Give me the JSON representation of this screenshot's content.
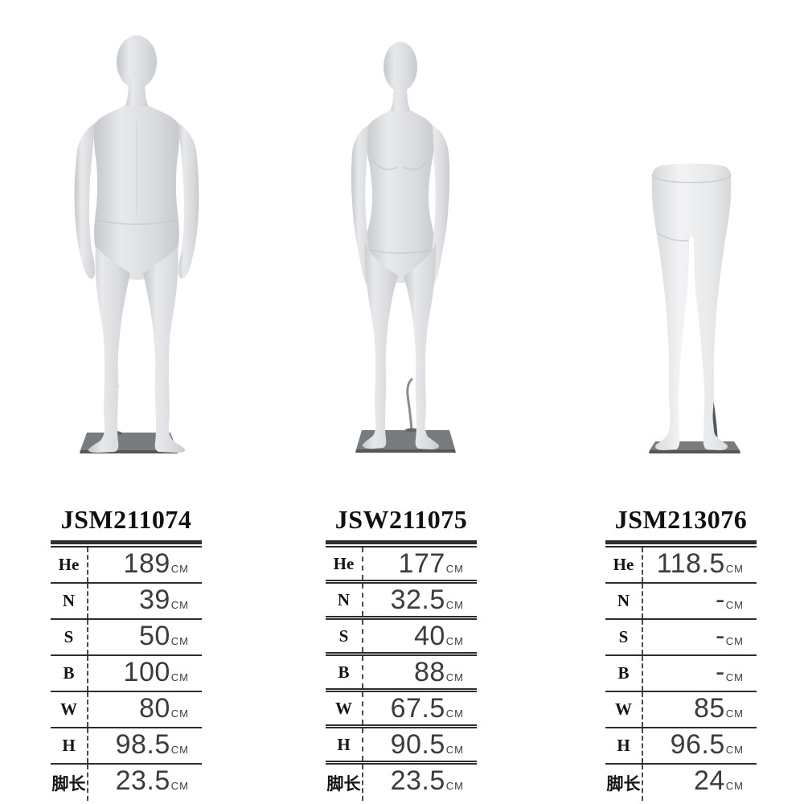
{
  "unit": "CM",
  "colors": {
    "body_mid": "#d8dadd",
    "body_light": "#ecedef",
    "body_shadow": "#c3c6c9",
    "base_top": "#797c7f",
    "base_edge": "#54575a",
    "rod": "#8b8e91",
    "table_line": "#2e2e2e",
    "label_text": "#141414",
    "value_text": "#3c3c3c"
  },
  "products": [
    {
      "model": "JSM211074",
      "figure": "male-full-body-mannequin",
      "specs": [
        {
          "label": "He",
          "value": "189"
        },
        {
          "label": "N",
          "value": "39"
        },
        {
          "label": "S",
          "value": "50"
        },
        {
          "label": "B",
          "value": "100"
        },
        {
          "label": "W",
          "value": "80"
        },
        {
          "label": "H",
          "value": "98.5"
        },
        {
          "label": "脚长",
          "value": "23.5"
        }
      ]
    },
    {
      "model": "JSW211075",
      "figure": "female-full-body-mannequin",
      "specs": [
        {
          "label": "He",
          "value": "177"
        },
        {
          "label": "N",
          "value": "32.5"
        },
        {
          "label": "S",
          "value": "40"
        },
        {
          "label": "B",
          "value": "88"
        },
        {
          "label": "W",
          "value": "67.5"
        },
        {
          "label": "H",
          "value": "90.5"
        },
        {
          "label": "脚长",
          "value": "23.5"
        }
      ]
    },
    {
      "model": "JSM213076",
      "figure": "male-legs-mannequin",
      "specs": [
        {
          "label": "He",
          "value": "118.5"
        },
        {
          "label": "N",
          "value": "-"
        },
        {
          "label": "S",
          "value": "-"
        },
        {
          "label": "B",
          "value": "-"
        },
        {
          "label": "W",
          "value": "85"
        },
        {
          "label": "H",
          "value": "96.5"
        },
        {
          "label": "脚长",
          "value": "24"
        }
      ]
    }
  ]
}
